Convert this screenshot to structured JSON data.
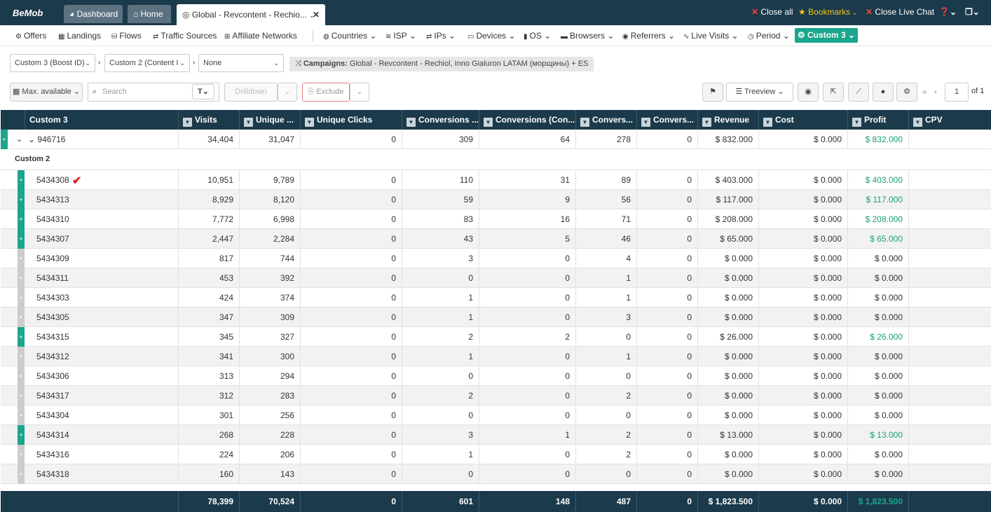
{
  "topbar": {
    "logo": "BeMob",
    "tabs": [
      {
        "label": "Dashboard"
      },
      {
        "label": "Home"
      },
      {
        "label": "Global - Revcontent - Rechio..."
      }
    ],
    "close_all": "Close all",
    "bookmarks": "Bookmarks",
    "close_chat": "Close Live Chat"
  },
  "nav": {
    "items": [
      {
        "label": "Offers"
      },
      {
        "label": "Landings"
      },
      {
        "label": "Flows"
      },
      {
        "label": "Traffic Sources"
      },
      {
        "label": "Affiliate Networks"
      },
      {
        "label": "Countries"
      },
      {
        "label": "ISP"
      },
      {
        "label": "IPs"
      },
      {
        "label": "Devices"
      },
      {
        "label": "OS"
      },
      {
        "label": "Browsers"
      },
      {
        "label": "Referrers"
      },
      {
        "label": "Live Visits"
      },
      {
        "label": "Period"
      }
    ],
    "custom_btn": "Custom 3"
  },
  "filters": {
    "group1": "Custom 3 (Boost ID)",
    "group2": "Custom 2 (Content I",
    "group3": "None",
    "crumb_label": "Campaigns:",
    "crumb_value": "Global - Revcontent - Rechiol, Inno Gialuron LATAM (морщины) + ES"
  },
  "toolbar": {
    "max": "Max. available",
    "search_placeholder": "Search",
    "drilldown": "Drilldown",
    "exclude": "Exclude",
    "treeview": "Treeview",
    "page": "1",
    "of": "of 1"
  },
  "columns": [
    "Custom 3",
    "Visits",
    "Unique ...",
    "Unique Clicks",
    "Conversions ...",
    "Conversions (Con...",
    "Convers...",
    "Convers...",
    "Revenue",
    "Cost",
    "Profit",
    "CPV"
  ],
  "parent": {
    "name": "946716",
    "visits": "34,404",
    "unique": "31,047",
    "uclicks": "0",
    "c1": "309",
    "c2": "64",
    "c3": "278",
    "c4": "0",
    "revenue": "$ 832.000",
    "cost": "$ 0.000",
    "profit": "$ 832.000"
  },
  "sub_header": "Custom 2",
  "rows": [
    {
      "name": "5434308",
      "visits": "10,951",
      "unique": "9,789",
      "uclicks": "0",
      "c1": "110",
      "c2": "31",
      "c3": "89",
      "c4": "0",
      "revenue": "$ 403.000",
      "cost": "$ 0.000",
      "profit": "$ 403.000",
      "exp": true,
      "pos": true
    },
    {
      "name": "5434313",
      "visits": "8,929",
      "unique": "8,120",
      "uclicks": "0",
      "c1": "59",
      "c2": "9",
      "c3": "56",
      "c4": "0",
      "revenue": "$ 117.000",
      "cost": "$ 0.000",
      "profit": "$ 117.000",
      "exp": true,
      "pos": true
    },
    {
      "name": "5434310",
      "visits": "7,772",
      "unique": "6,998",
      "uclicks": "0",
      "c1": "83",
      "c2": "16",
      "c3": "71",
      "c4": "0",
      "revenue": "$ 208.000",
      "cost": "$ 0.000",
      "profit": "$ 208.000",
      "exp": true,
      "pos": true
    },
    {
      "name": "5434307",
      "visits": "2,447",
      "unique": "2,284",
      "uclicks": "0",
      "c1": "43",
      "c2": "5",
      "c3": "46",
      "c4": "0",
      "revenue": "$ 65.000",
      "cost": "$ 0.000",
      "profit": "$ 65.000",
      "exp": true,
      "pos": true
    },
    {
      "name": "5434309",
      "visits": "817",
      "unique": "744",
      "uclicks": "0",
      "c1": "3",
      "c2": "0",
      "c3": "4",
      "c4": "0",
      "revenue": "$ 0.000",
      "cost": "$ 0.000",
      "profit": "$ 0.000",
      "exp": false,
      "pos": false
    },
    {
      "name": "5434311",
      "visits": "453",
      "unique": "392",
      "uclicks": "0",
      "c1": "0",
      "c2": "0",
      "c3": "1",
      "c4": "0",
      "revenue": "$ 0.000",
      "cost": "$ 0.000",
      "profit": "$ 0.000",
      "exp": false,
      "pos": false
    },
    {
      "name": "5434303",
      "visits": "424",
      "unique": "374",
      "uclicks": "0",
      "c1": "1",
      "c2": "0",
      "c3": "1",
      "c4": "0",
      "revenue": "$ 0.000",
      "cost": "$ 0.000",
      "profit": "$ 0.000",
      "exp": false,
      "pos": false
    },
    {
      "name": "5434305",
      "visits": "347",
      "unique": "309",
      "uclicks": "0",
      "c1": "1",
      "c2": "0",
      "c3": "3",
      "c4": "0",
      "revenue": "$ 0.000",
      "cost": "$ 0.000",
      "profit": "$ 0.000",
      "exp": false,
      "pos": false
    },
    {
      "name": "5434315",
      "visits": "345",
      "unique": "327",
      "uclicks": "0",
      "c1": "2",
      "c2": "2",
      "c3": "0",
      "c4": "0",
      "revenue": "$ 26.000",
      "cost": "$ 0.000",
      "profit": "$ 26.000",
      "exp": true,
      "pos": true
    },
    {
      "name": "5434312",
      "visits": "341",
      "unique": "300",
      "uclicks": "0",
      "c1": "1",
      "c2": "0",
      "c3": "1",
      "c4": "0",
      "revenue": "$ 0.000",
      "cost": "$ 0.000",
      "profit": "$ 0.000",
      "exp": false,
      "pos": false
    },
    {
      "name": "5434306",
      "visits": "313",
      "unique": "294",
      "uclicks": "0",
      "c1": "0",
      "c2": "0",
      "c3": "0",
      "c4": "0",
      "revenue": "$ 0.000",
      "cost": "$ 0.000",
      "profit": "$ 0.000",
      "exp": false,
      "pos": false
    },
    {
      "name": "5434317",
      "visits": "312",
      "unique": "283",
      "uclicks": "0",
      "c1": "2",
      "c2": "0",
      "c3": "2",
      "c4": "0",
      "revenue": "$ 0.000",
      "cost": "$ 0.000",
      "profit": "$ 0.000",
      "exp": false,
      "pos": false
    },
    {
      "name": "5434304",
      "visits": "301",
      "unique": "256",
      "uclicks": "0",
      "c1": "0",
      "c2": "0",
      "c3": "0",
      "c4": "0",
      "revenue": "$ 0.000",
      "cost": "$ 0.000",
      "profit": "$ 0.000",
      "exp": false,
      "pos": false
    },
    {
      "name": "5434314",
      "visits": "268",
      "unique": "228",
      "uclicks": "0",
      "c1": "3",
      "c2": "1",
      "c3": "2",
      "c4": "0",
      "revenue": "$ 13.000",
      "cost": "$ 0.000",
      "profit": "$ 13.000",
      "exp": true,
      "pos": true
    },
    {
      "name": "5434316",
      "visits": "224",
      "unique": "206",
      "uclicks": "0",
      "c1": "1",
      "c2": "0",
      "c3": "2",
      "c4": "0",
      "revenue": "$ 0.000",
      "cost": "$ 0.000",
      "profit": "$ 0.000",
      "exp": false,
      "pos": false
    },
    {
      "name": "5434318",
      "visits": "160",
      "unique": "143",
      "uclicks": "0",
      "c1": "0",
      "c2": "0",
      "c3": "0",
      "c4": "0",
      "revenue": "$ 0.000",
      "cost": "$ 0.000",
      "profit": "$ 0.000",
      "exp": false,
      "pos": false
    }
  ],
  "totals": {
    "visits": "78,399",
    "unique": "70,524",
    "uclicks": "0",
    "c1": "601",
    "c2": "148",
    "c3": "487",
    "c4": "0",
    "revenue": "$ 1,823.500",
    "cost": "$ 0.000",
    "profit": "$ 1,823.500"
  },
  "colors": {
    "header": "#1b3a4b",
    "accent": "#1aa58c",
    "profit": "#1a9e7a"
  }
}
